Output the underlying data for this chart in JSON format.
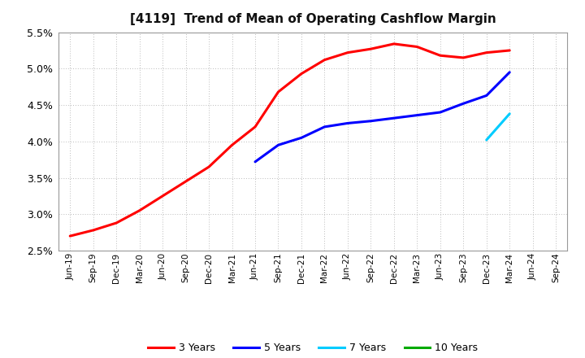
{
  "title": "[4119]  Trend of Mean of Operating Cashflow Margin",
  "ylim": [
    0.025,
    0.055
  ],
  "yticks": [
    0.025,
    0.03,
    0.035,
    0.04,
    0.045,
    0.05,
    0.055
  ],
  "x_labels": [
    "Jun-19",
    "Sep-19",
    "Dec-19",
    "Mar-20",
    "Jun-20",
    "Sep-20",
    "Dec-20",
    "Mar-21",
    "Jun-21",
    "Sep-21",
    "Dec-21",
    "Mar-22",
    "Jun-22",
    "Sep-22",
    "Dec-22",
    "Mar-23",
    "Jun-23",
    "Sep-23",
    "Dec-23",
    "Mar-24",
    "Jun-24",
    "Sep-24"
  ],
  "series": {
    "3 Years": {
      "color": "#FF0000",
      "values": [
        0.027,
        0.0278,
        0.0288,
        0.0305,
        0.0325,
        0.0345,
        0.0365,
        0.0395,
        0.042,
        0.0468,
        0.0493,
        0.0512,
        0.0522,
        0.0527,
        0.0534,
        0.053,
        0.0518,
        0.0515,
        0.0522,
        0.0525,
        null,
        null
      ]
    },
    "5 Years": {
      "color": "#0000FF",
      "values": [
        null,
        null,
        null,
        null,
        null,
        null,
        null,
        null,
        0.0372,
        0.0395,
        0.0405,
        0.042,
        0.0425,
        0.0428,
        0.0432,
        0.0436,
        0.044,
        0.0452,
        0.0463,
        0.0495,
        null,
        null
      ]
    },
    "7 Years": {
      "color": "#00CCFF",
      "values": [
        null,
        null,
        null,
        null,
        null,
        null,
        null,
        null,
        null,
        null,
        null,
        null,
        null,
        null,
        null,
        null,
        null,
        null,
        0.0402,
        0.0438,
        null,
        null
      ]
    },
    "10 Years": {
      "color": "#00AA00",
      "values": [
        null,
        null,
        null,
        null,
        null,
        null,
        null,
        null,
        null,
        null,
        null,
        null,
        null,
        null,
        null,
        null,
        null,
        null,
        null,
        null,
        null,
        null
      ]
    }
  },
  "background_color": "#FFFFFF",
  "plot_bg_color": "#FFFFFF",
  "grid_color": "#BBBBBB",
  "legend_items": [
    "3 Years",
    "5 Years",
    "7 Years",
    "10 Years"
  ],
  "legend_colors": [
    "#FF0000",
    "#0000FF",
    "#00CCFF",
    "#00AA00"
  ]
}
